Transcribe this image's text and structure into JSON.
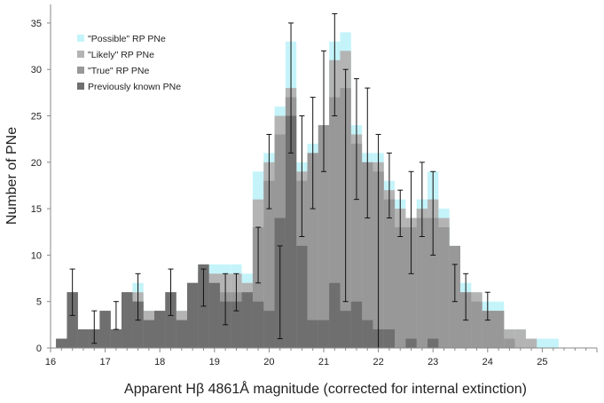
{
  "chart_data": {
    "type": "bar",
    "title": "",
    "xlabel": "Apparent Hβ 4861Å  magnitude (corrected for internal extinction)",
    "ylabel": "Number of PNe",
    "xlim": [
      16.0,
      26.0
    ],
    "ylim": [
      0,
      37
    ],
    "x_ticks": [
      16,
      17,
      18,
      19,
      20,
      21,
      22,
      23,
      24,
      25
    ],
    "y_ticks": [
      0,
      5,
      10,
      15,
      20,
      25,
      30,
      35
    ],
    "grid": false,
    "legend_position": "top-left",
    "bin_width": 0.2,
    "bin_starts": [
      16.1,
      16.3,
      16.5,
      16.7,
      16.9,
      17.1,
      17.3,
      17.5,
      17.7,
      17.9,
      18.1,
      18.3,
      18.5,
      18.7,
      18.9,
      19.1,
      19.3,
      19.5,
      19.7,
      19.9,
      20.1,
      20.3,
      20.5,
      20.7,
      20.9,
      21.1,
      21.3,
      21.5,
      21.7,
      21.9,
      22.1,
      22.3,
      22.5,
      22.7,
      22.9,
      23.1,
      23.3,
      23.5,
      23.7,
      23.9,
      24.1,
      24.3,
      24.5,
      24.7,
      24.9,
      25.1
    ],
    "series": [
      {
        "name": "\"Possible\" RP PNe",
        "color": "#c4f4fa",
        "values": [
          1,
          6,
          2,
          2,
          4,
          2,
          6,
          7,
          4,
          4,
          6,
          4,
          7,
          9,
          9,
          9,
          9,
          8,
          19,
          21,
          26,
          33,
          20,
          22,
          24,
          33,
          34,
          24,
          21,
          21,
          18,
          16,
          14,
          16,
          19,
          15,
          11,
          7,
          6,
          5,
          5,
          2,
          2,
          1,
          1,
          1
        ]
      },
      {
        "name": "\"Likely\" RP PNe",
        "color": "#b4b4b4",
        "values": [
          1,
          6,
          2,
          2,
          4,
          2,
          6,
          6,
          4,
          4,
          6,
          4,
          7,
          9,
          8,
          8,
          8,
          7,
          16,
          20,
          25,
          28,
          19,
          21,
          24,
          31,
          32,
          23,
          20,
          20,
          17,
          15,
          14,
          15,
          16,
          14,
          11,
          6,
          6,
          4,
          4,
          2,
          2,
          1,
          0,
          0
        ]
      },
      {
        "name": "\"True\" RP PNe",
        "color": "#989898",
        "values": [
          1,
          6,
          2,
          2,
          4,
          2,
          6,
          5,
          3,
          4,
          6,
          3,
          7,
          8,
          7,
          6,
          6,
          6,
          13,
          18,
          23,
          27,
          18,
          21,
          24,
          27,
          28,
          22,
          20,
          19,
          16,
          13,
          13,
          14,
          14,
          13,
          11,
          6,
          5,
          4,
          4,
          1,
          0,
          0,
          0,
          0
        ]
      },
      {
        "name": "Previously known PNe",
        "color": "#6f6f6f",
        "values": [
          1,
          6,
          2,
          2,
          4,
          2,
          6,
          5,
          3,
          4,
          6,
          3,
          7,
          9,
          7,
          5,
          5,
          6,
          5,
          4,
          14,
          25,
          11,
          3,
          3,
          7,
          4,
          5,
          3,
          2,
          2,
          0,
          1,
          0,
          1,
          0,
          0,
          0,
          0,
          0,
          0,
          0,
          0,
          0,
          0,
          0
        ]
      }
    ],
    "error_bars": {
      "x": [
        16.4,
        16.8,
        17.2,
        17.6,
        18.2,
        18.8,
        19.2,
        19.4,
        19.8,
        20.0,
        20.2,
        20.4,
        20.6,
        20.8,
        21.0,
        21.2,
        21.4,
        21.6,
        21.8,
        22.0,
        22.2,
        22.4,
        22.6,
        22.8,
        23.0,
        23.4,
        23.6,
        24.0
      ],
      "low": [
        3.5,
        0.5,
        2,
        3,
        3.5,
        4.5,
        2.5,
        4,
        7,
        15,
        1,
        21,
        12,
        15,
        19,
        25,
        5,
        16,
        14,
        0,
        14,
        12,
        8,
        12,
        10,
        5,
        3,
        3
      ],
      "high": [
        8.5,
        4,
        5,
        8,
        8.5,
        8.5,
        8,
        8,
        13,
        23,
        11,
        35,
        25,
        27,
        32,
        36,
        30,
        29,
        28,
        23,
        21,
        17,
        19,
        20,
        19,
        9,
        8,
        6
      ]
    }
  }
}
